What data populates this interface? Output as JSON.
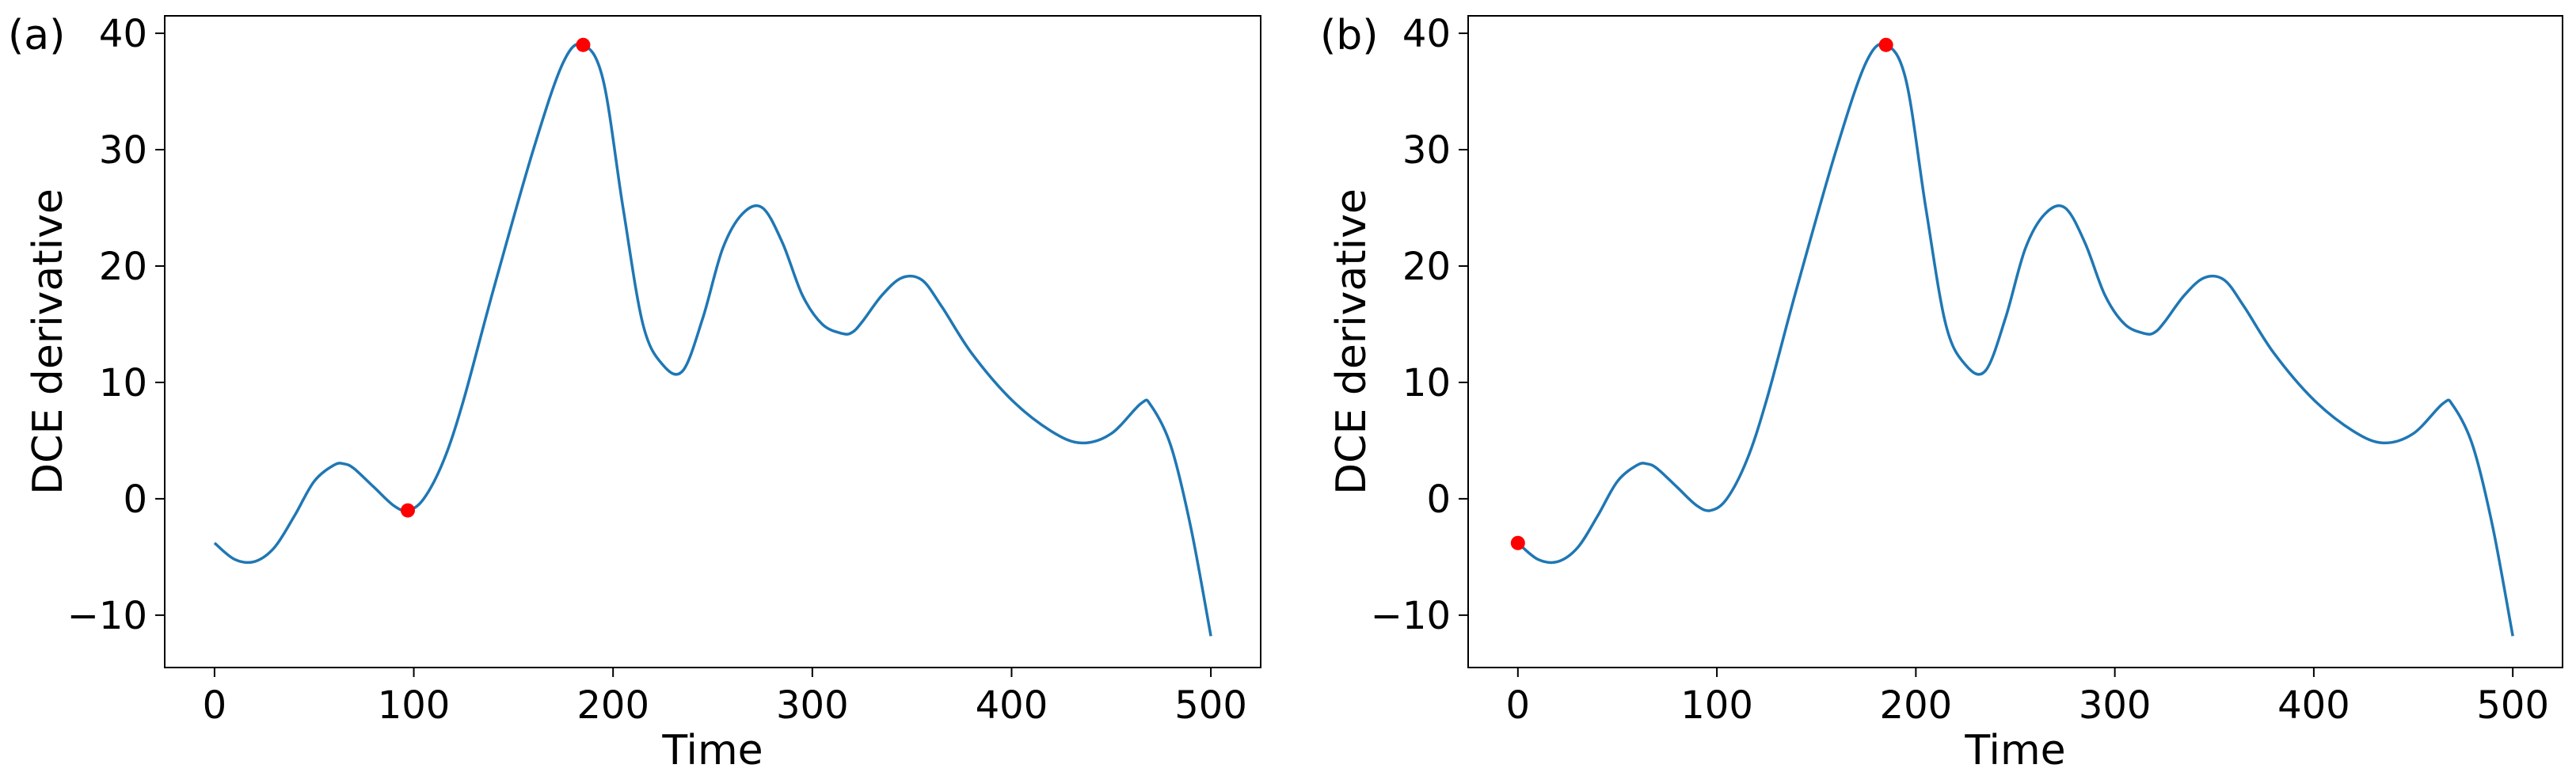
{
  "chart_data": [
    {
      "type": "line",
      "panel_label": "(a)",
      "xlabel": "Time",
      "ylabel": "DCE derivative",
      "xlim": [
        -25,
        525
      ],
      "ylim": [
        -14.5,
        41.5
      ],
      "xticks": [
        0,
        100,
        200,
        300,
        400,
        500
      ],
      "yticks": [
        -10,
        0,
        10,
        20,
        30,
        40
      ],
      "series": [
        {
          "color": "#1f77b4",
          "x": [
            0,
            10,
            20,
            30,
            40,
            50,
            60,
            65,
            70,
            80,
            90,
            97,
            105,
            115,
            125,
            140,
            160,
            175,
            185,
            195,
            205,
            215,
            225,
            235,
            245,
            255,
            265,
            275,
            285,
            295,
            305,
            315,
            320,
            325,
            335,
            345,
            355,
            365,
            380,
            400,
            420,
            435,
            450,
            465,
            470,
            480,
            490,
            500
          ],
          "y": [
            -3.8,
            -5.2,
            -5.4,
            -4.2,
            -1.5,
            1.5,
            2.9,
            3.0,
            2.6,
            1.0,
            -0.6,
            -1.0,
            0.0,
            3.3,
            8.5,
            18.0,
            30.0,
            37.5,
            39.0,
            36.0,
            25.0,
            15.0,
            11.5,
            11.0,
            15.5,
            21.5,
            24.5,
            25.0,
            22.0,
            17.5,
            15.0,
            14.2,
            14.3,
            15.2,
            17.5,
            19.0,
            18.8,
            16.5,
            12.5,
            8.5,
            5.8,
            4.8,
            5.6,
            8.2,
            8.0,
            4.5,
            -2.5,
            -11.8
          ]
        }
      ],
      "markers": [
        {
          "x": 97,
          "y": -1.0,
          "color": "#ff0000"
        },
        {
          "x": 185,
          "y": 39.0,
          "color": "#ff0000"
        }
      ]
    },
    {
      "type": "line",
      "panel_label": "(b)",
      "xlabel": "Time",
      "ylabel": "DCE derivative",
      "xlim": [
        -25,
        525
      ],
      "ylim": [
        -14.5,
        41.5
      ],
      "xticks": [
        0,
        100,
        200,
        300,
        400,
        500
      ],
      "yticks": [
        -10,
        0,
        10,
        20,
        30,
        40
      ],
      "series": [
        {
          "color": "#1f77b4",
          "x": [
            0,
            10,
            20,
            30,
            40,
            50,
            60,
            65,
            70,
            80,
            90,
            97,
            105,
            115,
            125,
            140,
            160,
            175,
            185,
            195,
            205,
            215,
            225,
            235,
            245,
            255,
            265,
            275,
            285,
            295,
            305,
            315,
            320,
            325,
            335,
            345,
            355,
            365,
            380,
            400,
            420,
            435,
            450,
            465,
            470,
            480,
            490,
            500
          ],
          "y": [
            -3.8,
            -5.2,
            -5.4,
            -4.2,
            -1.5,
            1.5,
            2.9,
            3.0,
            2.6,
            1.0,
            -0.6,
            -1.0,
            0.0,
            3.3,
            8.5,
            18.0,
            30.0,
            37.5,
            39.0,
            36.0,
            25.0,
            15.0,
            11.5,
            11.0,
            15.5,
            21.5,
            24.5,
            25.0,
            22.0,
            17.5,
            15.0,
            14.2,
            14.3,
            15.2,
            17.5,
            19.0,
            18.8,
            16.5,
            12.5,
            8.5,
            5.8,
            4.8,
            5.6,
            8.2,
            8.0,
            4.5,
            -2.5,
            -11.8
          ]
        }
      ],
      "markers": [
        {
          "x": 0,
          "y": -3.8,
          "color": "#ff0000"
        },
        {
          "x": 185,
          "y": 39.0,
          "color": "#ff0000"
        }
      ]
    }
  ]
}
